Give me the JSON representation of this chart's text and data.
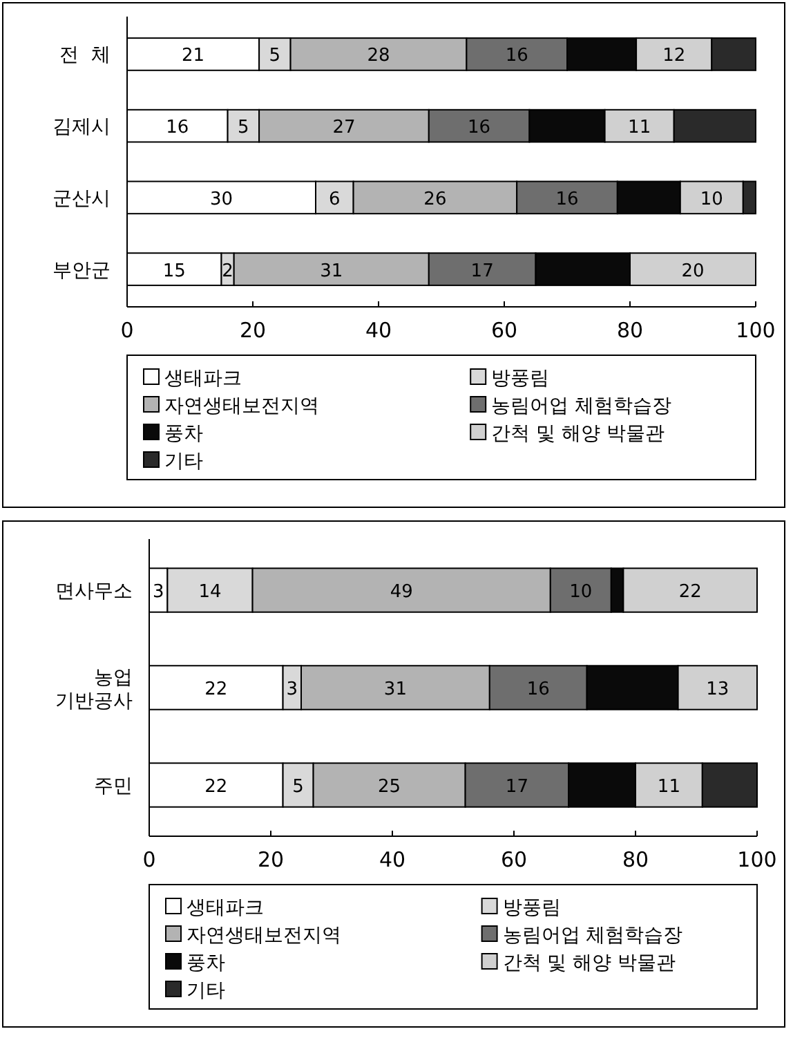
{
  "chart_data": [
    {
      "type": "bar",
      "orientation": "horizontal",
      "stacked": true,
      "categories": [
        "전  체",
        "김제시",
        "군산시",
        "부안군"
      ],
      "xlim": [
        0,
        100
      ],
      "xticks": [
        0,
        20,
        40,
        60,
        80,
        100
      ],
      "legend": "bottom",
      "grid": false,
      "series": [
        {
          "name": "생태파크",
          "color": "#ffffff",
          "values": [
            21,
            16,
            30,
            15
          ],
          "value_labels": [
            "21",
            "16",
            "30",
            "15"
          ]
        },
        {
          "name": "방풍림",
          "color": "#d9d9d9",
          "values": [
            5,
            5,
            6,
            2
          ],
          "value_labels": [
            "5",
            "5",
            "6",
            "2"
          ]
        },
        {
          "name": "자연생태보전지역",
          "color": "#b3b3b3",
          "values": [
            28,
            27,
            26,
            31
          ],
          "value_labels": [
            "28",
            "27",
            "26",
            "31"
          ]
        },
        {
          "name": "농림어업 체험학습장",
          "color": "#6e6e6e",
          "values": [
            16,
            16,
            16,
            17
          ],
          "value_labels": [
            "16",
            "16",
            "16",
            "17"
          ]
        },
        {
          "name": "풍차",
          "color": "#0a0a0a",
          "values": [
            11,
            12,
            10,
            15
          ],
          "value_labels": [
            null,
            null,
            null,
            null
          ]
        },
        {
          "name": "간척 및 해양 박물관",
          "color": "#d0d0d0",
          "values": [
            12,
            11,
            10,
            20
          ],
          "value_labels": [
            "12",
            "11",
            "10",
            "20"
          ]
        },
        {
          "name": "기타",
          "color": "#2a2a2a",
          "values": [
            7,
            13,
            2,
            null
          ],
          "value_labels": [
            null,
            null,
            null,
            null
          ]
        }
      ]
    },
    {
      "type": "bar",
      "orientation": "horizontal",
      "stacked": true,
      "categories": [
        "면사무소",
        "농업\n기반공사",
        "주민"
      ],
      "xlim": [
        0,
        100
      ],
      "xticks": [
        0,
        20,
        40,
        60,
        80,
        100
      ],
      "legend": "bottom",
      "grid": false,
      "series": [
        {
          "name": "생태파크",
          "color": "#ffffff",
          "values": [
            3,
            22,
            22
          ],
          "value_labels": [
            "3",
            "22",
            "22"
          ]
        },
        {
          "name": "방풍림",
          "color": "#d9d9d9",
          "values": [
            14,
            3,
            5
          ],
          "value_labels": [
            "14",
            "3",
            "5"
          ]
        },
        {
          "name": "자연생태보전지역",
          "color": "#b3b3b3",
          "values": [
            49,
            31,
            25
          ],
          "value_labels": [
            "49",
            "31",
            "25"
          ]
        },
        {
          "name": "농림어업 체험학습장",
          "color": "#6e6e6e",
          "values": [
            10,
            16,
            17
          ],
          "value_labels": [
            "10",
            "16",
            "17"
          ]
        },
        {
          "name": "풍차",
          "color": "#0a0a0a",
          "values": [
            2,
            15,
            11
          ],
          "value_labels": [
            null,
            null,
            null
          ]
        },
        {
          "name": "간척 및 해양 박물관",
          "color": "#d0d0d0",
          "values": [
            22,
            13,
            11
          ],
          "value_labels": [
            "22",
            "13",
            "11"
          ]
        },
        {
          "name": "기타",
          "color": "#2a2a2a",
          "values": [
            null,
            null,
            9
          ],
          "value_labels": [
            null,
            null,
            null
          ]
        }
      ]
    }
  ]
}
